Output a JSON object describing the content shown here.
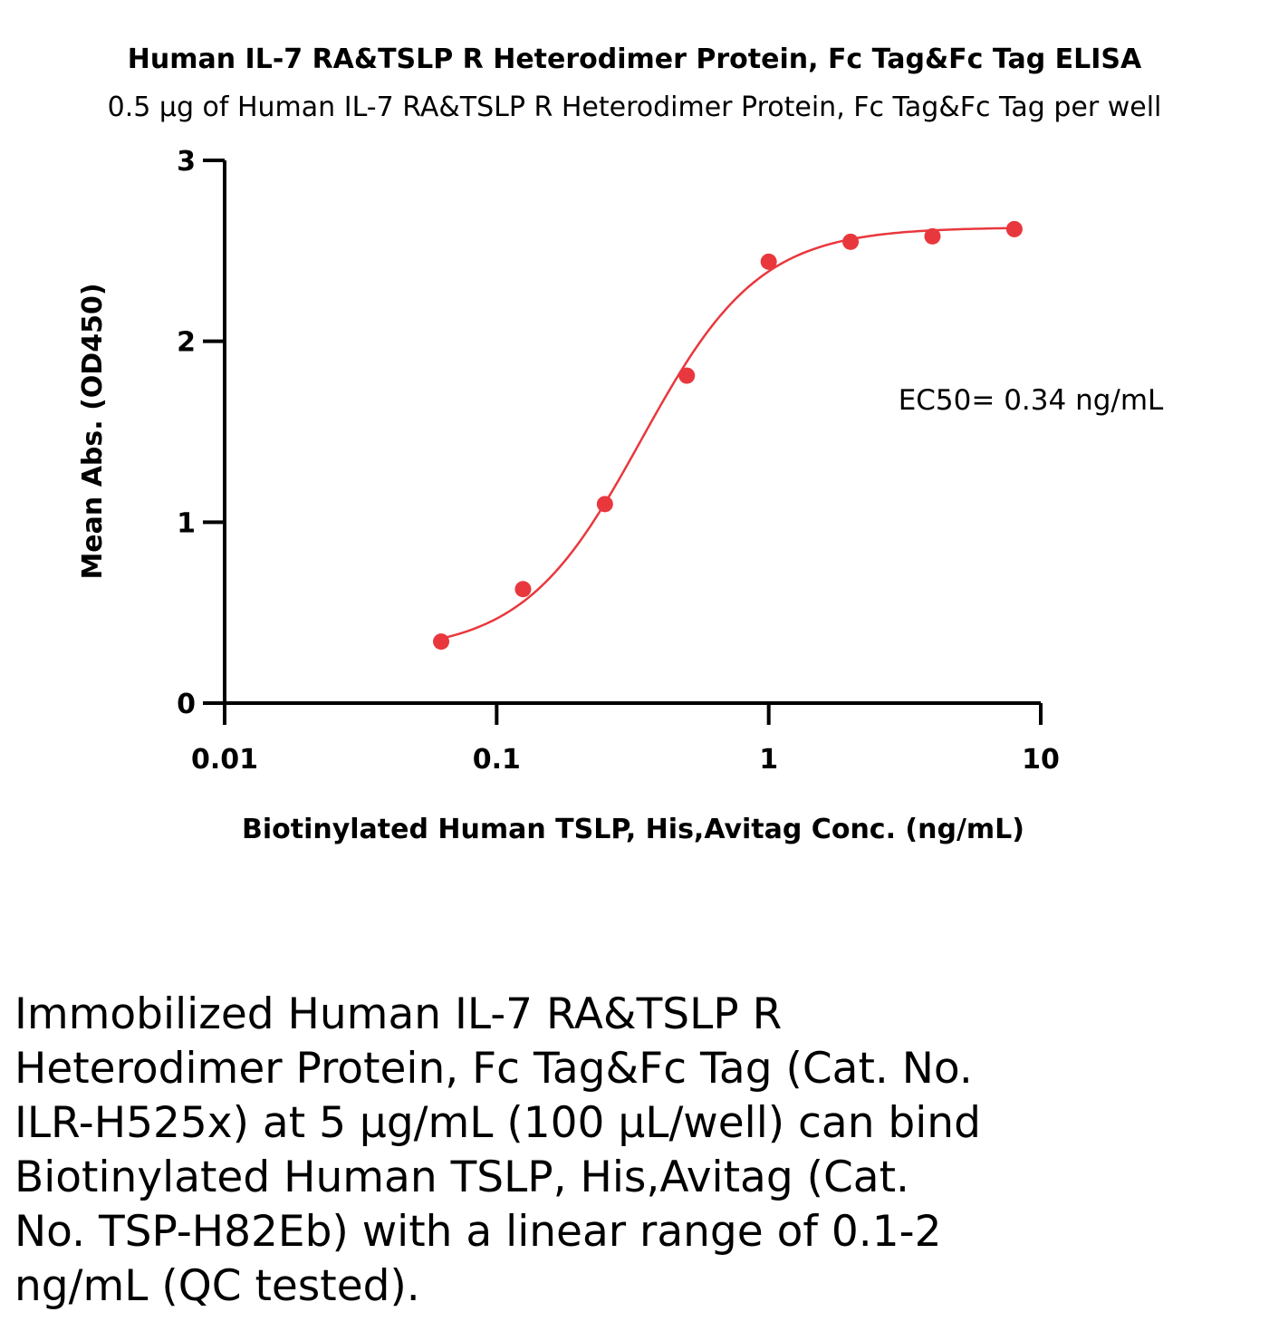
{
  "chart_data": {
    "type": "scatter",
    "title": "Human IL-7 RA&TSLP R Heterodimer Protein, Fc Tag&Fc Tag ELISA",
    "subtitle": "0.5 μg of Human IL-7 RA&TSLP R Heterodimer Protein, Fc Tag&Fc Tag per well",
    "xlabel": "Biotinylated Human TSLP, His,Avitag Conc. (ng/mL)",
    "ylabel": "Mean Abs. (OD450)",
    "x_scale": "log",
    "xlim": [
      0.01,
      10
    ],
    "ylim": [
      0,
      3
    ],
    "x_ticks": [
      "0.01",
      "0.1",
      "1",
      "10"
    ],
    "y_ticks": [
      "0",
      "1",
      "2",
      "3"
    ],
    "grid": false,
    "point_color": "#e8383d",
    "curve_color": "#e8383d",
    "series": [
      {
        "x": [
          0.0625,
          0.125,
          0.25,
          0.5,
          1,
          2,
          4,
          8
        ],
        "y": [
          0.34,
          0.63,
          1.1,
          1.81,
          2.44,
          2.55,
          2.58,
          2.62
        ]
      }
    ],
    "fit": {
      "bottom": 0.28,
      "top": 2.63,
      "ec50": 0.34,
      "hill": 2.0
    },
    "annotation": "EC50= 0.34 ng/mL"
  },
  "caption": "Immobilized Human IL-7 RA&TSLP R Heterodimer Protein, Fc Tag&Fc Tag (Cat. No. ILR-H525x) at 5 μg/mL (100 μL/well) can bind Biotinylated Human TSLP, His,Avitag (Cat. No. TSP-H82Eb) with a linear range of 0.1-2 ng/mL (QC tested)."
}
